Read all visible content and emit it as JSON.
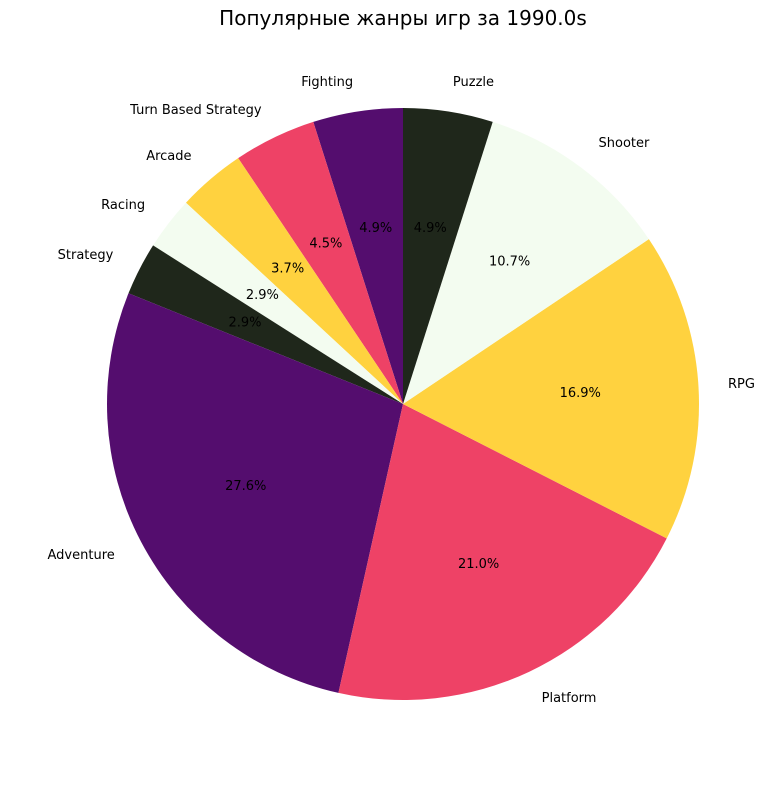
{
  "chart_data": {
    "type": "pie",
    "title": "Популярные жанры игр за 1990.0s",
    "start_angle_deg": 90,
    "direction": "counterclockwise",
    "slices": [
      {
        "label": "Fighting",
        "value": 4.9,
        "pct_label": "4.9%",
        "color": "#540d6e"
      },
      {
        "label": "Turn Based Strategy",
        "value": 4.5,
        "pct_label": "4.5%",
        "color": "#ee4266"
      },
      {
        "label": "Arcade",
        "value": 3.7,
        "pct_label": "3.7%",
        "color": "#ffd23f"
      },
      {
        "label": "Racing",
        "value": 2.9,
        "pct_label": "2.9%",
        "color": "#f3fcf0"
      },
      {
        "label": "Strategy",
        "value": 2.9,
        "pct_label": "2.9%",
        "color": "#1f271b"
      },
      {
        "label": "Adventure",
        "value": 27.6,
        "pct_label": "27.6%",
        "color": "#540d6e"
      },
      {
        "label": "Platform",
        "value": 21.0,
        "pct_label": "21.0%",
        "color": "#ee4266"
      },
      {
        "label": "RPG",
        "value": 16.9,
        "pct_label": "16.9%",
        "color": "#ffd23f"
      },
      {
        "label": "Shooter",
        "value": 10.7,
        "pct_label": "10.7%",
        "color": "#f3fcf0"
      },
      {
        "label": "Puzzle",
        "value": 4.9,
        "pct_label": "4.9%",
        "color": "#1f271b"
      }
    ]
  }
}
